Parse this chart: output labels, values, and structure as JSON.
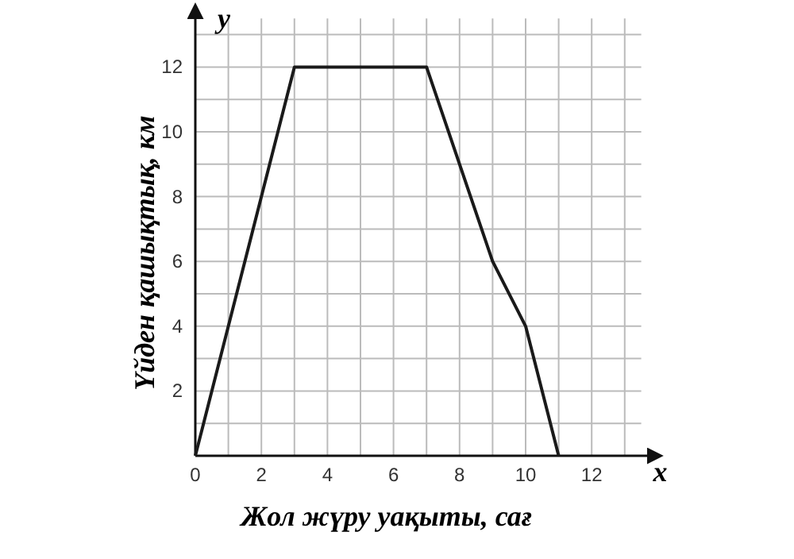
{
  "chart_data": {
    "type": "line",
    "xlabel": "Жол жүру уақыты, сағ",
    "ylabel": "Үйден қашықтық, км",
    "x": [
      0,
      3,
      7,
      9,
      10,
      11
    ],
    "series": [
      {
        "color": "#1a1a1a",
        "values": [
          0,
          12,
          12,
          6,
          4,
          0
        ]
      }
    ],
    "xlim": [
      0,
      13.5
    ],
    "ylim": [
      0,
      13.5
    ],
    "xticks": [
      0,
      {
        "value": 1,
        "label": null
      },
      2,
      {
        "value": 3,
        "label": null
      },
      4,
      {
        "value": 5,
        "label": null
      },
      6,
      {
        "value": 7,
        "label": null
      },
      8,
      {
        "value": 9,
        "label": null
      },
      10,
      {
        "value": 11,
        "label": null
      },
      12,
      {
        "value": 13,
        "label": null
      }
    ],
    "yticks": [
      {
        "value": 1,
        "label": null
      },
      2,
      {
        "value": 3,
        "label": null
      },
      4,
      {
        "value": 5,
        "label": null
      },
      6,
      {
        "value": 7,
        "label": null
      },
      8,
      {
        "value": 9,
        "label": null
      },
      10,
      {
        "value": 11,
        "label": null
      },
      12,
      {
        "value": 13,
        "label": null
      }
    ],
    "grid": true,
    "marker": "none",
    "line_style": "solid",
    "annotations": [
      "x",
      "y"
    ]
  }
}
